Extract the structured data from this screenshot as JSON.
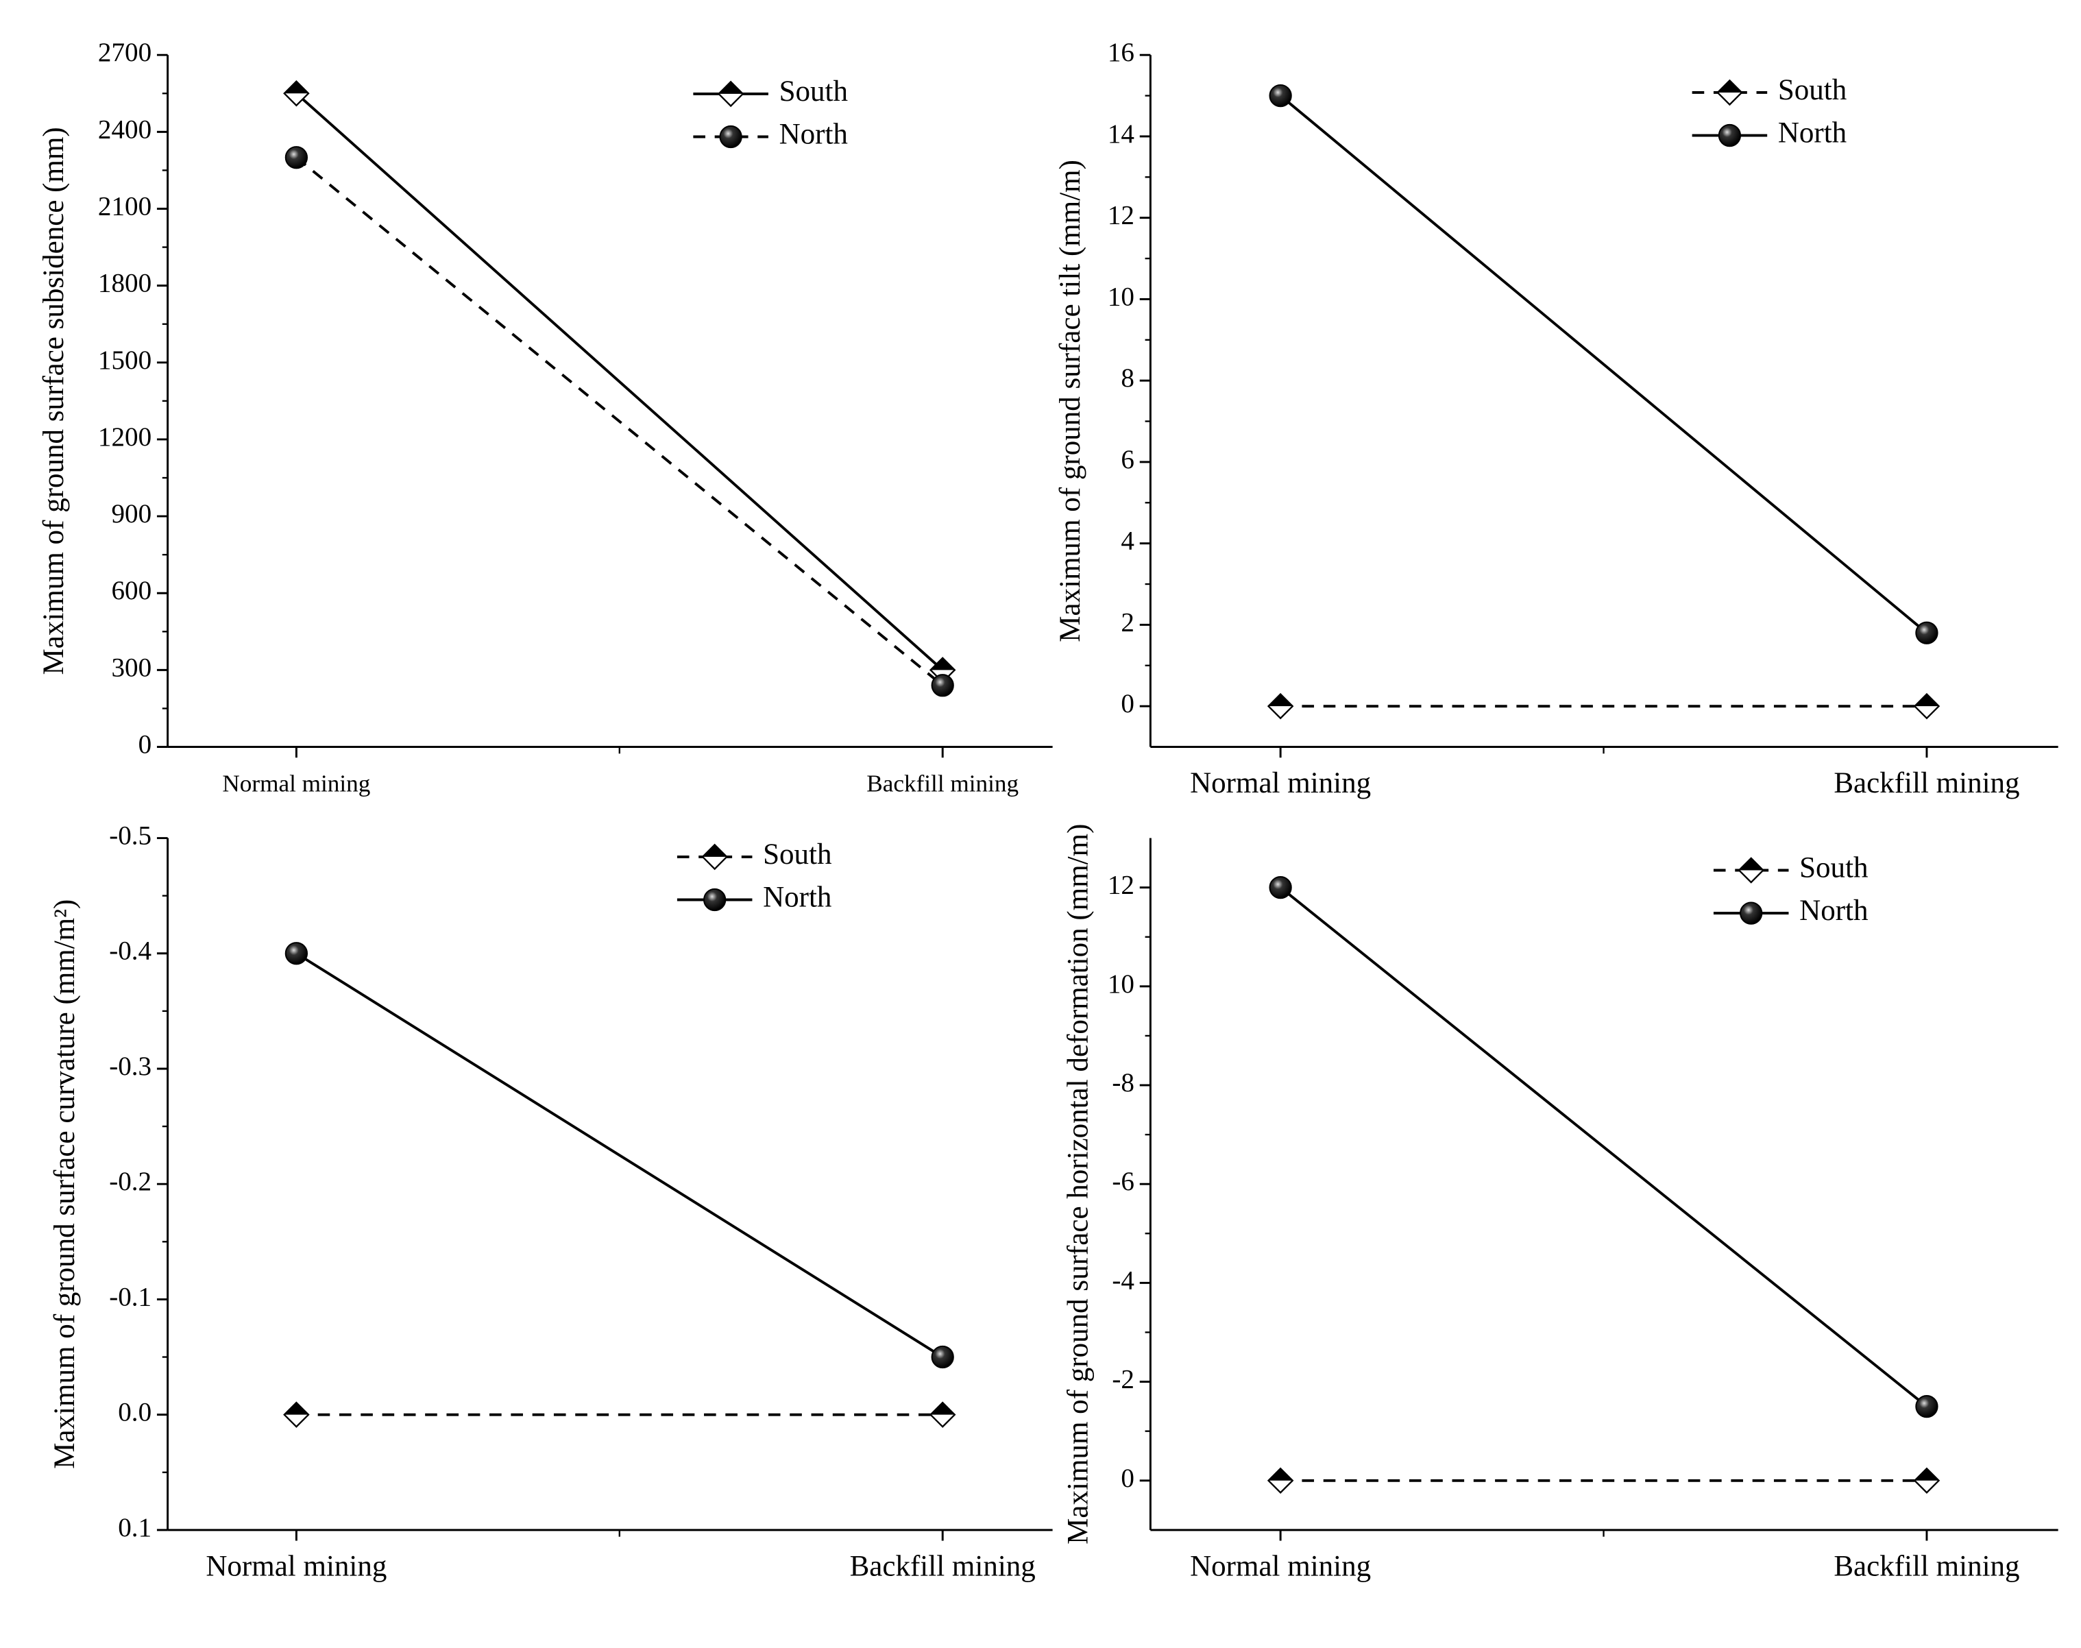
{
  "chart_data": [
    {
      "type": "line",
      "y_label": "Maximum of ground surface subsidence (mm)",
      "categories": [
        "Normal mining",
        "Backfill mining"
      ],
      "series": [
        {
          "name": "South",
          "color": "#000000",
          "linestyle": "solid",
          "marker": "diamond",
          "values": [
            2550,
            300
          ]
        },
        {
          "name": "North",
          "color": "#000000",
          "linestyle": "dashed",
          "marker": "circle",
          "values": [
            2300,
            240
          ]
        }
      ],
      "ylim": [
        0,
        2700
      ],
      "yticks": [
        0,
        300,
        600,
        900,
        1200,
        1500,
        1800,
        2100,
        2400,
        2700
      ],
      "legend": "upper right"
    },
    {
      "type": "line",
      "y_label": "Maximum of ground surface tilt (mm/m)",
      "categories": [
        "Normal mining",
        "Backfill mining"
      ],
      "series": [
        {
          "name": "South",
          "color": "#000000",
          "linestyle": "dashed",
          "marker": "diamond",
          "values": [
            0,
            0
          ]
        },
        {
          "name": "North",
          "color": "#000000",
          "linestyle": "solid",
          "marker": "circle",
          "values": [
            15,
            1.8
          ]
        }
      ],
      "ylim": [
        -1,
        16
      ],
      "yticks": [
        0,
        2,
        4,
        6,
        8,
        10,
        12,
        14,
        16
      ],
      "legend": "upper right"
    },
    {
      "type": "line",
      "y_label": "Maximum of ground surface curvature (mm/m²)",
      "categories": [
        "Normal mining",
        "Backfill mining"
      ],
      "series": [
        {
          "name": "South",
          "color": "#000000",
          "linestyle": "dashed",
          "marker": "diamond",
          "values": [
            0,
            0
          ]
        },
        {
          "name": "North",
          "color": "#000000",
          "linestyle": "solid",
          "marker": "circle",
          "values": [
            -0.4,
            -0.05
          ]
        }
      ],
      "ylim": [
        0.1,
        -0.5
      ],
      "yticks": [
        -0.5,
        -0.4,
        -0.3,
        -0.2,
        -0.1,
        {
          "value": 0,
          "label": "0.0"
        },
        0.1
      ],
      "legend": "upper right"
    },
    {
      "type": "line",
      "y_label": "Maximum of ground surface horizontal deformation (mm/m)",
      "categories": [
        "Normal mining",
        "Backfill mining"
      ],
      "series": [
        {
          "name": "South",
          "color": "#000000",
          "linestyle": "dashed",
          "marker": "diamond",
          "values": [
            0,
            0
          ]
        },
        {
          "name": "North",
          "color": "#000000",
          "linestyle": "solid",
          "marker": "circle",
          "values": [
            -12,
            -1.5
          ]
        }
      ],
      "ylim": [
        1,
        -13
      ],
      "yticks": [
        {
          "value": -12,
          "label": "12"
        },
        {
          "value": -10,
          "label": "10"
        },
        -8,
        -6,
        -4,
        -2,
        0
      ],
      "legend": "upper right"
    }
  ]
}
